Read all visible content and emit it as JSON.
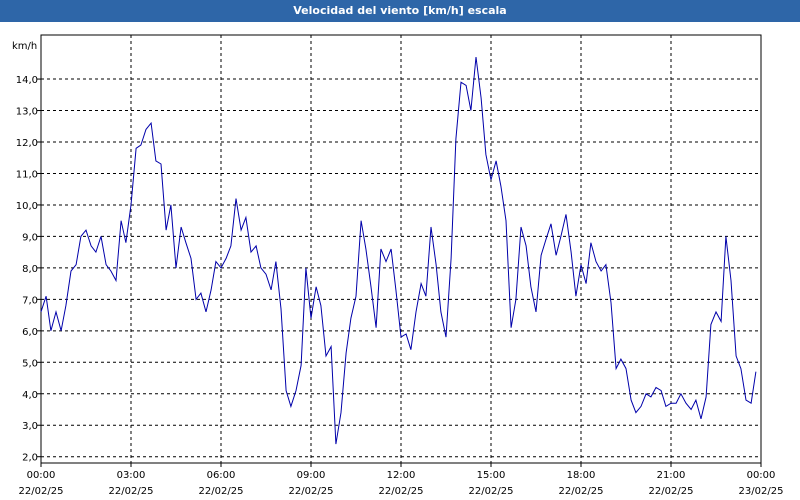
{
  "chart_data": {
    "type": "line",
    "title": "Velocidad del viento [km/h] escala",
    "ylabel": "km/h",
    "xlabel": "",
    "ylim": [
      1.8,
      15.4
    ],
    "xlim": [
      0,
      24
    ],
    "grid": true,
    "colors": {
      "title_bg": "#2e66a8",
      "line": "#0000aa",
      "grid": "#000000"
    },
    "y_ticks": [
      {
        "value": 2,
        "label": "2,0"
      },
      {
        "value": 3,
        "label": "3,0"
      },
      {
        "value": 4,
        "label": "4,0"
      },
      {
        "value": 5,
        "label": "5,0"
      },
      {
        "value": 6,
        "label": "6,0"
      },
      {
        "value": 7,
        "label": "7,0"
      },
      {
        "value": 8,
        "label": "8,0"
      },
      {
        "value": 9,
        "label": "9,0"
      },
      {
        "value": 10,
        "label": "10,0"
      },
      {
        "value": 11,
        "label": "11,0"
      },
      {
        "value": 12,
        "label": "12,0"
      },
      {
        "value": 13,
        "label": "13,0"
      },
      {
        "value": 14,
        "label": "14,0"
      }
    ],
    "x_ticks": [
      {
        "value": 0,
        "time": "00:00",
        "date": "22/02/25"
      },
      {
        "value": 3,
        "time": "03:00",
        "date": "22/02/25"
      },
      {
        "value": 6,
        "time": "06:00",
        "date": "22/02/25"
      },
      {
        "value": 9,
        "time": "09:00",
        "date": "22/02/25"
      },
      {
        "value": 12,
        "time": "12:00",
        "date": "22/02/25"
      },
      {
        "value": 15,
        "time": "15:00",
        "date": "22/02/25"
      },
      {
        "value": 18,
        "time": "18:00",
        "date": "22/02/25"
      },
      {
        "value": 21,
        "time": "21:00",
        "date": "22/02/25"
      },
      {
        "value": 24,
        "time": "00:00",
        "date": "23/02/25"
      }
    ],
    "series": [
      {
        "name": "Velocidad del viento",
        "points": [
          [
            0.0,
            6.6
          ],
          [
            0.17,
            7.1
          ],
          [
            0.33,
            6.0
          ],
          [
            0.5,
            6.6
          ],
          [
            0.67,
            6.0
          ],
          [
            0.83,
            6.8
          ],
          [
            1.0,
            7.9
          ],
          [
            1.17,
            8.1
          ],
          [
            1.33,
            9.0
          ],
          [
            1.5,
            9.2
          ],
          [
            1.67,
            8.7
          ],
          [
            1.83,
            8.5
          ],
          [
            2.0,
            9.0
          ],
          [
            2.17,
            8.1
          ],
          [
            2.33,
            7.9
          ],
          [
            2.5,
            7.6
          ],
          [
            2.67,
            9.5
          ],
          [
            2.83,
            8.8
          ],
          [
            3.0,
            10.0
          ],
          [
            3.17,
            11.8
          ],
          [
            3.33,
            11.9
          ],
          [
            3.5,
            12.4
          ],
          [
            3.67,
            12.6
          ],
          [
            3.83,
            11.4
          ],
          [
            4.0,
            11.3
          ],
          [
            4.17,
            9.2
          ],
          [
            4.33,
            10.0
          ],
          [
            4.5,
            8.0
          ],
          [
            4.67,
            9.3
          ],
          [
            4.83,
            8.8
          ],
          [
            5.0,
            8.3
          ],
          [
            5.17,
            7.0
          ],
          [
            5.33,
            7.2
          ],
          [
            5.5,
            6.6
          ],
          [
            5.67,
            7.3
          ],
          [
            5.83,
            8.2
          ],
          [
            6.0,
            8.0
          ],
          [
            6.17,
            8.3
          ],
          [
            6.33,
            8.7
          ],
          [
            6.5,
            10.2
          ],
          [
            6.67,
            9.2
          ],
          [
            6.83,
            9.6
          ],
          [
            7.0,
            8.5
          ],
          [
            7.17,
            8.7
          ],
          [
            7.33,
            8.0
          ],
          [
            7.5,
            7.8
          ],
          [
            7.67,
            7.3
          ],
          [
            7.83,
            8.2
          ],
          [
            8.0,
            6.7
          ],
          [
            8.17,
            4.1
          ],
          [
            8.33,
            3.6
          ],
          [
            8.5,
            4.1
          ],
          [
            8.67,
            4.9
          ],
          [
            8.83,
            8.0
          ],
          [
            9.0,
            6.4
          ],
          [
            9.17,
            7.4
          ],
          [
            9.33,
            6.8
          ],
          [
            9.5,
            5.2
          ],
          [
            9.67,
            5.5
          ],
          [
            9.83,
            2.4
          ],
          [
            10.0,
            3.4
          ],
          [
            10.17,
            5.3
          ],
          [
            10.33,
            6.4
          ],
          [
            10.5,
            7.1
          ],
          [
            10.67,
            9.5
          ],
          [
            10.83,
            8.6
          ],
          [
            11.0,
            7.4
          ],
          [
            11.17,
            6.1
          ],
          [
            11.33,
            8.6
          ],
          [
            11.5,
            8.2
          ],
          [
            11.67,
            8.6
          ],
          [
            11.83,
            7.3
          ],
          [
            12.0,
            5.8
          ],
          [
            12.17,
            5.9
          ],
          [
            12.33,
            5.4
          ],
          [
            12.5,
            6.6
          ],
          [
            12.67,
            7.5
          ],
          [
            12.83,
            7.1
          ],
          [
            13.0,
            9.3
          ],
          [
            13.17,
            8.1
          ],
          [
            13.33,
            6.6
          ],
          [
            13.5,
            5.8
          ],
          [
            13.67,
            8.3
          ],
          [
            13.83,
            12.1
          ],
          [
            14.0,
            13.9
          ],
          [
            14.17,
            13.8
          ],
          [
            14.33,
            13.0
          ],
          [
            14.5,
            14.7
          ],
          [
            14.67,
            13.4
          ],
          [
            14.83,
            11.6
          ],
          [
            15.0,
            10.8
          ],
          [
            15.17,
            11.4
          ],
          [
            15.33,
            10.6
          ],
          [
            15.5,
            9.5
          ],
          [
            15.67,
            6.1
          ],
          [
            15.83,
            7.0
          ],
          [
            16.0,
            9.3
          ],
          [
            16.17,
            8.7
          ],
          [
            16.33,
            7.4
          ],
          [
            16.5,
            6.6
          ],
          [
            16.67,
            8.4
          ],
          [
            16.83,
            8.9
          ],
          [
            17.0,
            9.4
          ],
          [
            17.17,
            8.4
          ],
          [
            17.33,
            9.0
          ],
          [
            17.5,
            9.7
          ],
          [
            17.67,
            8.5
          ],
          [
            17.83,
            7.1
          ],
          [
            18.0,
            8.1
          ],
          [
            18.17,
            7.5
          ],
          [
            18.33,
            8.8
          ],
          [
            18.5,
            8.2
          ],
          [
            18.67,
            7.9
          ],
          [
            18.83,
            8.1
          ],
          [
            19.0,
            6.9
          ],
          [
            19.17,
            4.8
          ],
          [
            19.33,
            5.1
          ],
          [
            19.5,
            4.8
          ],
          [
            19.67,
            3.8
          ],
          [
            19.83,
            3.4
          ],
          [
            20.0,
            3.6
          ],
          [
            20.17,
            4.0
          ],
          [
            20.33,
            3.9
          ],
          [
            20.5,
            4.2
          ],
          [
            20.67,
            4.1
          ],
          [
            20.83,
            3.6
          ],
          [
            21.0,
            3.7
          ],
          [
            21.17,
            3.7
          ],
          [
            21.33,
            4.0
          ],
          [
            21.5,
            3.7
          ],
          [
            21.67,
            3.5
          ],
          [
            21.83,
            3.8
          ],
          [
            22.0,
            3.2
          ],
          [
            22.17,
            3.9
          ],
          [
            22.33,
            6.2
          ],
          [
            22.5,
            6.6
          ],
          [
            22.67,
            6.3
          ],
          [
            22.83,
            9.0
          ],
          [
            23.0,
            7.6
          ],
          [
            23.17,
            5.2
          ],
          [
            23.33,
            4.8
          ],
          [
            23.5,
            3.8
          ],
          [
            23.67,
            3.7
          ],
          [
            23.83,
            4.7
          ]
        ]
      }
    ]
  }
}
